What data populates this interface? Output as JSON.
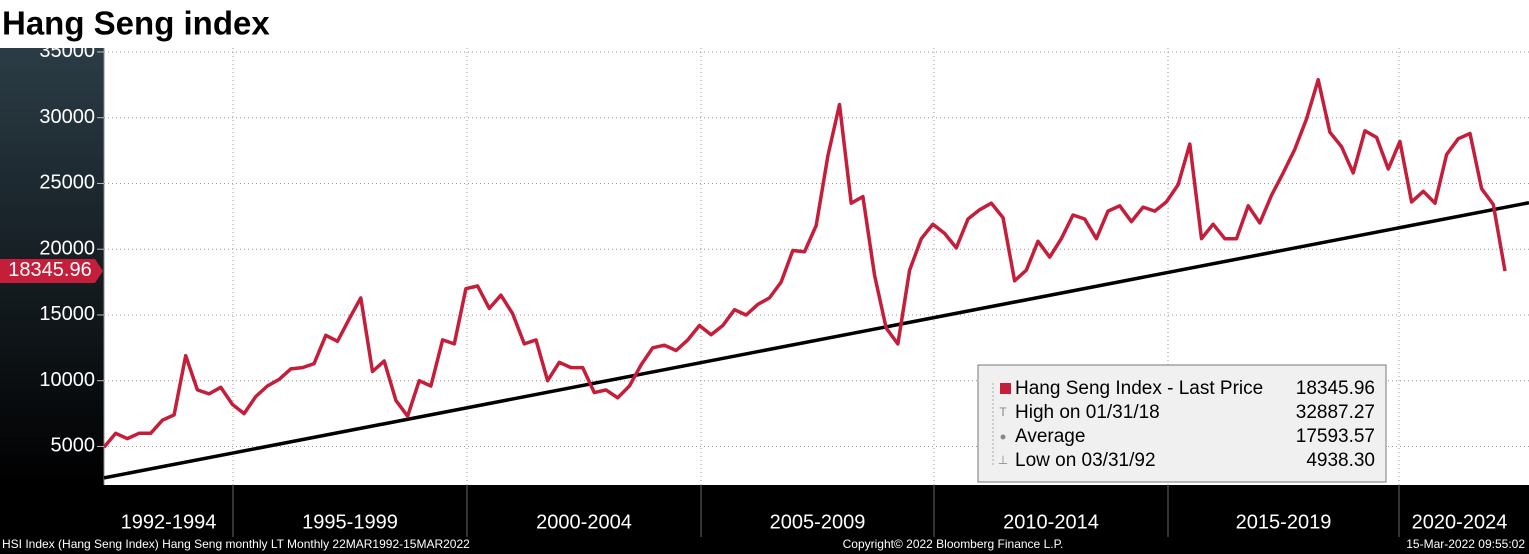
{
  "chart_data": {
    "type": "line",
    "title": "Hang Seng index",
    "periods": [
      "1992-1994",
      "1995-1999",
      "2000-2004",
      "2005-2009",
      "2010-2014",
      "2015-2019",
      "2020-2024"
    ],
    "series": [
      {
        "name": "Hang Seng Index - Last Price",
        "color": "#c41e3a",
        "values": [
          4938.3,
          6000,
          5600,
          6000,
          6000,
          7000,
          7400,
          11900,
          9300,
          9000,
          9500,
          8200,
          7500,
          8800,
          9600,
          10100,
          10900,
          11000,
          11300,
          13450,
          13000,
          14700,
          16300,
          10700,
          11500,
          8500,
          7300,
          10000,
          9600,
          13100,
          12800,
          17000,
          17200,
          15500,
          16500,
          15100,
          12800,
          13100,
          10000,
          11400,
          11000,
          11000,
          9100,
          9300,
          8700,
          9600,
          11200,
          12500,
          12700,
          12300,
          13100,
          14200,
          13500,
          14200,
          15400,
          15000,
          15800,
          16300,
          17500,
          19900,
          19800,
          21800,
          27100,
          31000,
          23500,
          24000,
          18000,
          14000,
          12800,
          18400,
          20800,
          21900,
          21200,
          20100,
          22300,
          23000,
          23500,
          22400,
          17600,
          18400,
          20600,
          19400,
          20800,
          22600,
          22300,
          20800,
          22900,
          23300,
          22100,
          23200,
          22900,
          23600,
          24900,
          28000,
          20800,
          21900,
          20800,
          20800,
          23300,
          22000,
          24100,
          25800,
          27600,
          29900,
          32887.27,
          28900,
          27800,
          25800,
          29000,
          28500,
          26100,
          28200,
          23600,
          24400,
          23500,
          27200,
          28400,
          28800,
          24600,
          23400,
          18345.96
        ]
      }
    ],
    "trend_line": [
      2610,
      23535
    ],
    "trend_color": "#000000",
    "stats": [
      {
        "label": "High on 01/31/18",
        "value": 32887.27
      },
      {
        "label": "Average",
        "value": 17593.57
      },
      {
        "label": "Low on 03/31/92",
        "value": 4938.3,
        "value_label": "4938.30"
      }
    ],
    "ylim": [
      2070,
      35300
    ],
    "yticks": [
      5000,
      10000,
      15000,
      20000,
      25000,
      30000,
      35000
    ],
    "grid": true
  },
  "footer": {
    "left": "HSI Index (Hang Seng Index) Hang Seng monthly LT  Monthly 22MAR1992-15MAR2022",
    "center": "Copyright© 2022 Bloomberg Finance L.P.",
    "right": "15-Mar-2022 09:55:02"
  }
}
